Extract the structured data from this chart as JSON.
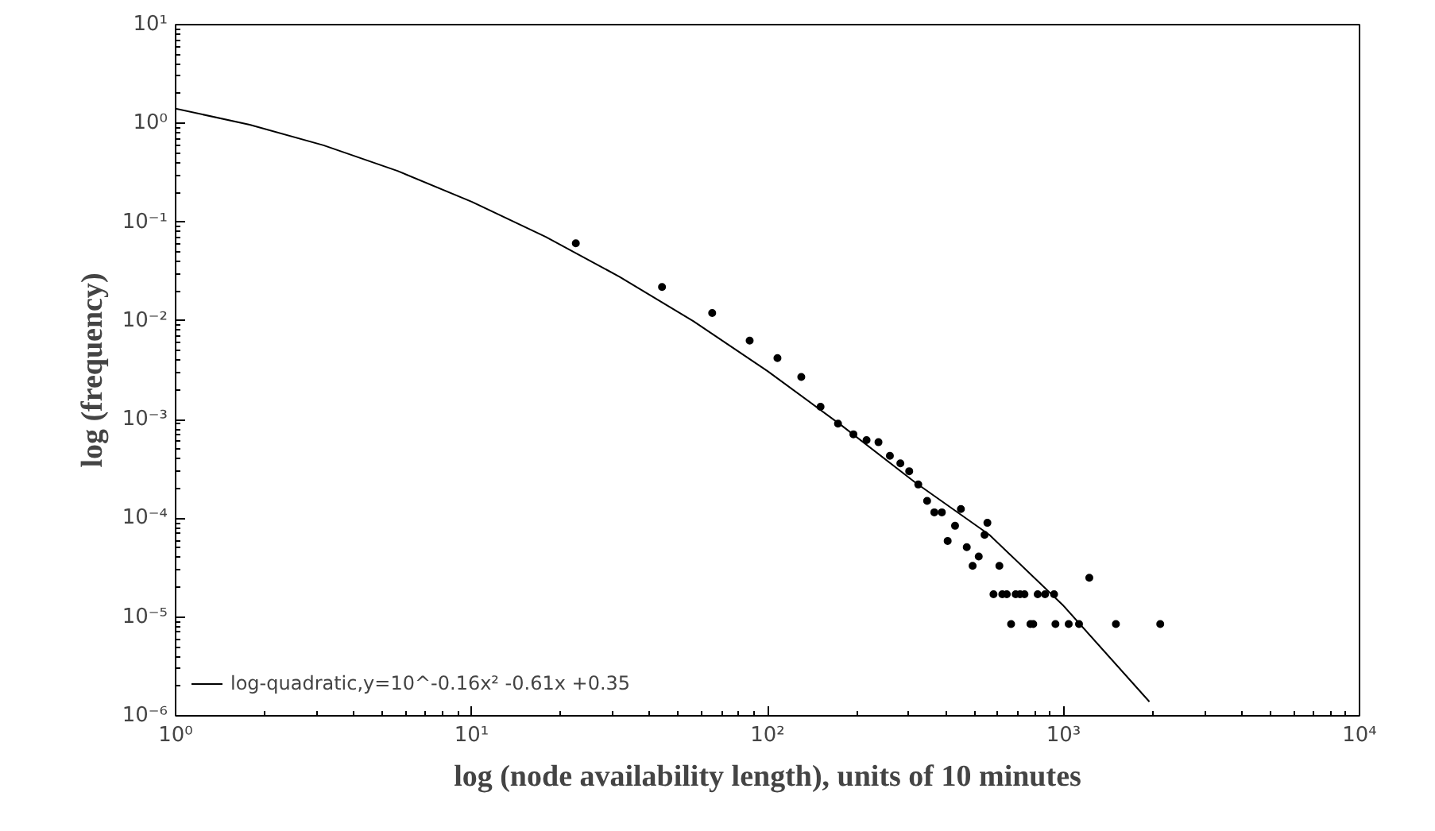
{
  "chart_data": {
    "type": "scatter",
    "xlabel": "log (node availability length), units of 10 minutes",
    "ylabel": "log (frequency)",
    "log": "xy",
    "grid": false,
    "legend": "bottom left",
    "marker": "circle",
    "xlim": [
      1,
      10000
    ],
    "ylim": [
      1e-06,
      10
    ],
    "xticks": [
      {
        "value": 1,
        "label": "10⁰"
      },
      {
        "value": 10,
        "label": "10¹"
      },
      {
        "value": 100,
        "label": "10²"
      },
      {
        "value": 1000,
        "label": "10³"
      },
      {
        "value": 10000,
        "label": "10⁴"
      }
    ],
    "yticks": [
      {
        "value": 1e-06,
        "label": "10⁻⁶"
      },
      {
        "value": 1e-05,
        "label": "10⁻⁵"
      },
      {
        "value": 0.0001,
        "label": "10⁻⁴"
      },
      {
        "value": 0.001,
        "label": "10⁻³"
      },
      {
        "value": 0.01,
        "label": "10⁻²"
      },
      {
        "value": 0.1,
        "label": "10⁻¹"
      },
      {
        "value": 1,
        "label": "10⁰"
      },
      {
        "value": 10,
        "label": "10¹"
      }
    ],
    "series": [
      {
        "color": "#000000",
        "x": [
          22.5,
          44,
          65,
          87,
          108,
          130,
          151,
          173,
          195,
          216,
          237,
          259,
          281,
          301,
          323,
          346,
          366,
          388,
          450,
          430,
          406,
          471,
          517,
          493,
          541,
          553,
          607,
          1222,
          580,
          621,
          643,
          689,
          713,
          738,
          818,
          866,
          929,
          665,
          773,
          790,
          939,
          1041,
          1128,
          1503,
          2122
        ],
        "values": [
          0.061,
          0.022,
          0.012,
          0.0063,
          0.0042,
          0.0027,
          0.00135,
          0.00091,
          0.00071,
          0.00062,
          0.00059,
          0.00043,
          0.00036,
          0.0003,
          0.00022,
          0.00015,
          0.000115,
          0.000115,
          0.000124,
          8.4e-05,
          5.9e-05,
          5.1e-05,
          4.1e-05,
          3.3e-05,
          6.8e-05,
          9e-05,
          3.3e-05,
          2.5e-05,
          1.7e-05,
          1.7e-05,
          1.7e-05,
          1.7e-05,
          1.7e-05,
          1.7e-05,
          1.7e-05,
          1.7e-05,
          1.7e-05,
          8.5e-06,
          8.5e-06,
          8.5e-06,
          8.5e-06,
          8.5e-06,
          8.5e-06,
          8.5e-06,
          8.5e-06
        ]
      },
      {
        "type": "line",
        "name": "log-quadratic,y=10^-0.16x² -0.61x +0.35",
        "color": "#000000",
        "marker": "none",
        "x": [
          1,
          1.78,
          3.16,
          5.62,
          10,
          17.8,
          31.6,
          56.2,
          100,
          178,
          316,
          562,
          1000,
          1950
        ],
        "values": [
          1.41,
          0.97,
          0.6,
          0.33,
          0.161,
          0.071,
          0.028,
          0.0099,
          0.0031,
          0.00087,
          0.00023,
          6.8e-05,
          1.3e-05,
          1.39e-06
        ]
      }
    ]
  }
}
